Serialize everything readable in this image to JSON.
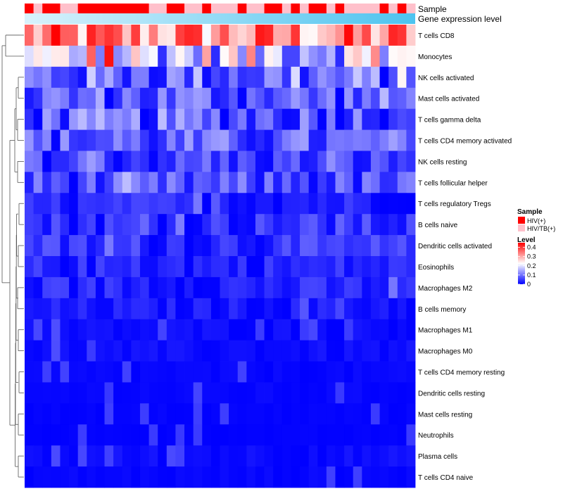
{
  "chart_data": {
    "type": "heatmap",
    "title": "",
    "annotation_tracks": [
      {
        "name": "Sample",
        "type": "categorical"
      },
      {
        "name": "Gene expression level",
        "type": "gradient"
      }
    ],
    "sample_groups": [
      {
        "label": "HIV(+)",
        "color": "#ff0000"
      },
      {
        "label": "HIV/TB(+)",
        "color": "#ffc0cb"
      }
    ],
    "sample_annotation": [
      "HIV(+)",
      "HIV/TB(+)",
      "HIV(+)",
      "HIV(+)",
      "HIV/TB(+)",
      "HIV/TB(+)",
      "HIV(+)",
      "HIV(+)",
      "HIV(+)",
      "HIV(+)",
      "HIV(+)",
      "HIV(+)",
      "HIV(+)",
      "HIV(+)",
      "HIV/TB(+)",
      "HIV/TB(+)",
      "HIV(+)",
      "HIV(+)",
      "HIV/TB(+)",
      "HIV/TB(+)",
      "HIV(+)",
      "HIV/TB(+)",
      "HIV/TB(+)",
      "HIV/TB(+)",
      "HIV(+)",
      "HIV/TB(+)",
      "HIV/TB(+)",
      "HIV(+)",
      "HIV(+)",
      "HIV/TB(+)",
      "HIV(+)",
      "HIV/TB(+)",
      "HIV(+)",
      "HIV(+)",
      "HIV/TB(+)",
      "HIV(+)",
      "HIV/TB(+)",
      "HIV/TB(+)",
      "HIV/TB(+)",
      "HIV/TB(+)",
      "HIV(+)",
      "HIV/TB(+)",
      "HIV(+)",
      "HIV/TB(+)"
    ],
    "rows": [
      "T cells CD8",
      "Monocytes",
      "NK cells activated",
      "Mast cells activated",
      "T cells gamma delta",
      "T cells CD4 memory activated",
      "NK cells resting",
      "T cells follicular helper",
      "T cells regulatory  Tregs",
      "B cells naive",
      "Dendritic cells activated",
      "Eosinophils",
      "Macrophages M2",
      "B cells memory",
      "Macrophages M1",
      "Macrophages M0",
      "T cells CD4 memory resting",
      "Dendritic cells resting",
      "Mast cells resting",
      "Neutrophils",
      "Plasma cells",
      "T cells CD4 naive"
    ],
    "row_means": [
      0.32,
      0.17,
      0.09,
      0.08,
      0.08,
      0.07,
      0.05,
      0.06,
      0.03,
      0.04,
      0.04,
      0.03,
      0.03,
      0.02,
      0.01,
      0.01,
      0.005,
      0.005,
      0.003,
      0.002,
      0.01,
      0.005
    ],
    "n_samples": 44,
    "color_scale": {
      "legend_title": "Level",
      "min": 0,
      "max": 0.45,
      "ticks": [
        0,
        0.1,
        0.2,
        0.3,
        0.4
      ],
      "tick_labels": [
        "0",
        "0.1",
        "0.2",
        "0.3",
        "0.4"
      ],
      "colors": [
        "#0000ff",
        "#ffffff",
        "#ff0000"
      ]
    },
    "legend_titles": {
      "sample": "Sample",
      "level": "Level"
    },
    "dendrogram": "rows",
    "legend_position": "right"
  }
}
